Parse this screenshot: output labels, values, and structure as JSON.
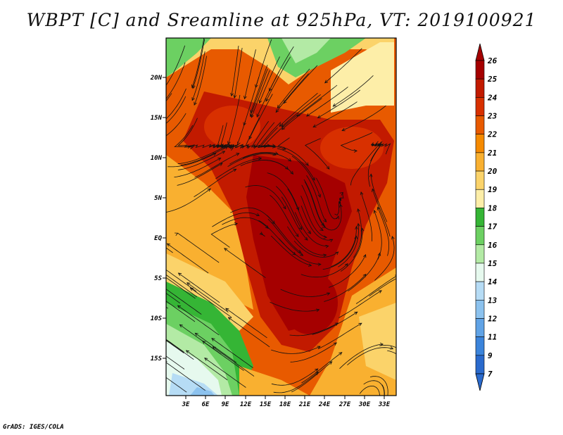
{
  "title": "WBPT [C] and Sreamline at 925hPa, VT: 2019100921",
  "footer": "GrADS: IGES/COLA",
  "map": {
    "lat_labels": [
      "20N",
      "15N",
      "10N",
      "5N",
      "EQ",
      "5S",
      "10S",
      "15S"
    ],
    "lon_labels": [
      "3E",
      "6E",
      "9E",
      "12E",
      "15E",
      "18E",
      "21E",
      "24E",
      "27E",
      "30E",
      "33E"
    ]
  },
  "colorbar": {
    "levels": [
      "26",
      "25",
      "24",
      "23",
      "22",
      "21",
      "20",
      "19",
      "18",
      "17",
      "16",
      "15",
      "14",
      "13",
      "12",
      "11",
      "9",
      "7"
    ],
    "colors": [
      "#a50000",
      "#c21a00",
      "#d83000",
      "#e85a00",
      "#f58a00",
      "#f9b030",
      "#fbd36a",
      "#fdeea8",
      "#35b535",
      "#6cd062",
      "#b3eaa5",
      "#e6f9ee",
      "#b6dcf5",
      "#8cc2ee",
      "#60a3e6",
      "#3b84db",
      "#2a6acd"
    ]
  }
}
